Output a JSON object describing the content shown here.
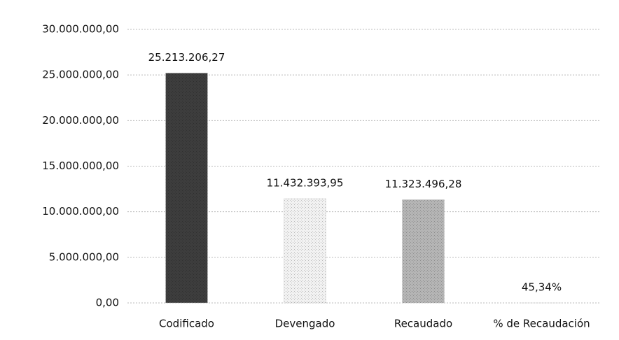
{
  "chart_data": {
    "type": "bar",
    "categories": [
      "Codificado",
      "Devengado",
      "Recaudado",
      "% de Recaudación"
    ],
    "values": [
      25213206.27,
      11432393.95,
      11323496.28,
      45.34
    ],
    "value_labels": [
      "25.213.206,27",
      "11.432.393,95",
      "11.323.496,28",
      "45,34%"
    ],
    "colors": [
      "#3d3d3d",
      "#f2f2f2",
      "#b5b5b5",
      "#d0d0d0"
    ],
    "ylim": [
      0,
      30000000
    ],
    "yticks": [
      {
        "value": 0,
        "label": "0,00"
      },
      {
        "value": 5000000,
        "label": "5.000.000,00"
      },
      {
        "value": 10000000,
        "label": "10.000.000,00"
      },
      {
        "value": 15000000,
        "label": "15.000.000,00"
      },
      {
        "value": 20000000,
        "label": "20.000.000,00"
      },
      {
        "value": 25000000,
        "label": "25.000.000,00"
      },
      {
        "value": 30000000,
        "label": "30.000.000,00"
      }
    ],
    "grid": true
  }
}
